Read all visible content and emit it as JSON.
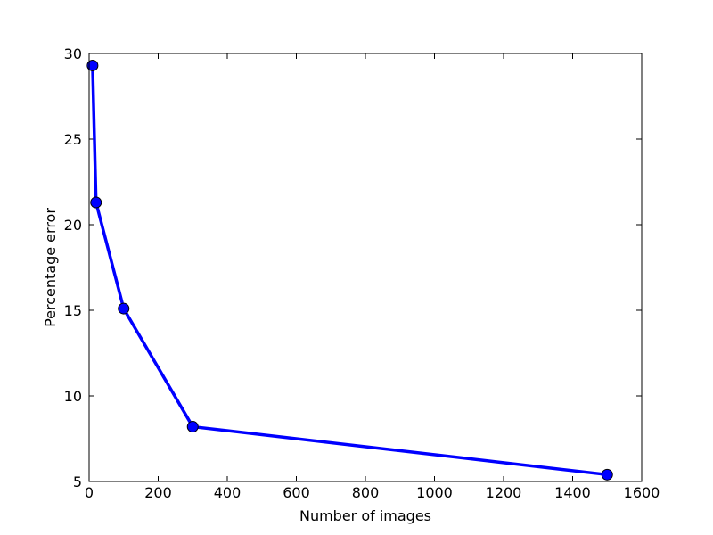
{
  "chart_data": {
    "type": "line",
    "x_label": "Number of images",
    "y_label": "Percentage error",
    "x": [
      10,
      20,
      100,
      300,
      1500
    ],
    "series": [
      {
        "color": "#0000ff",
        "values": [
          29.3,
          21.3,
          15.1,
          8.2,
          5.4
        ]
      }
    ],
    "xlim": [
      0,
      1600
    ],
    "xticks": [
      0,
      200,
      400,
      600,
      800,
      1000,
      1200,
      1400,
      1600
    ],
    "ylim": [
      5,
      30
    ],
    "yticks": [
      5,
      10,
      15,
      20,
      25,
      30
    ],
    "grid": false
  }
}
